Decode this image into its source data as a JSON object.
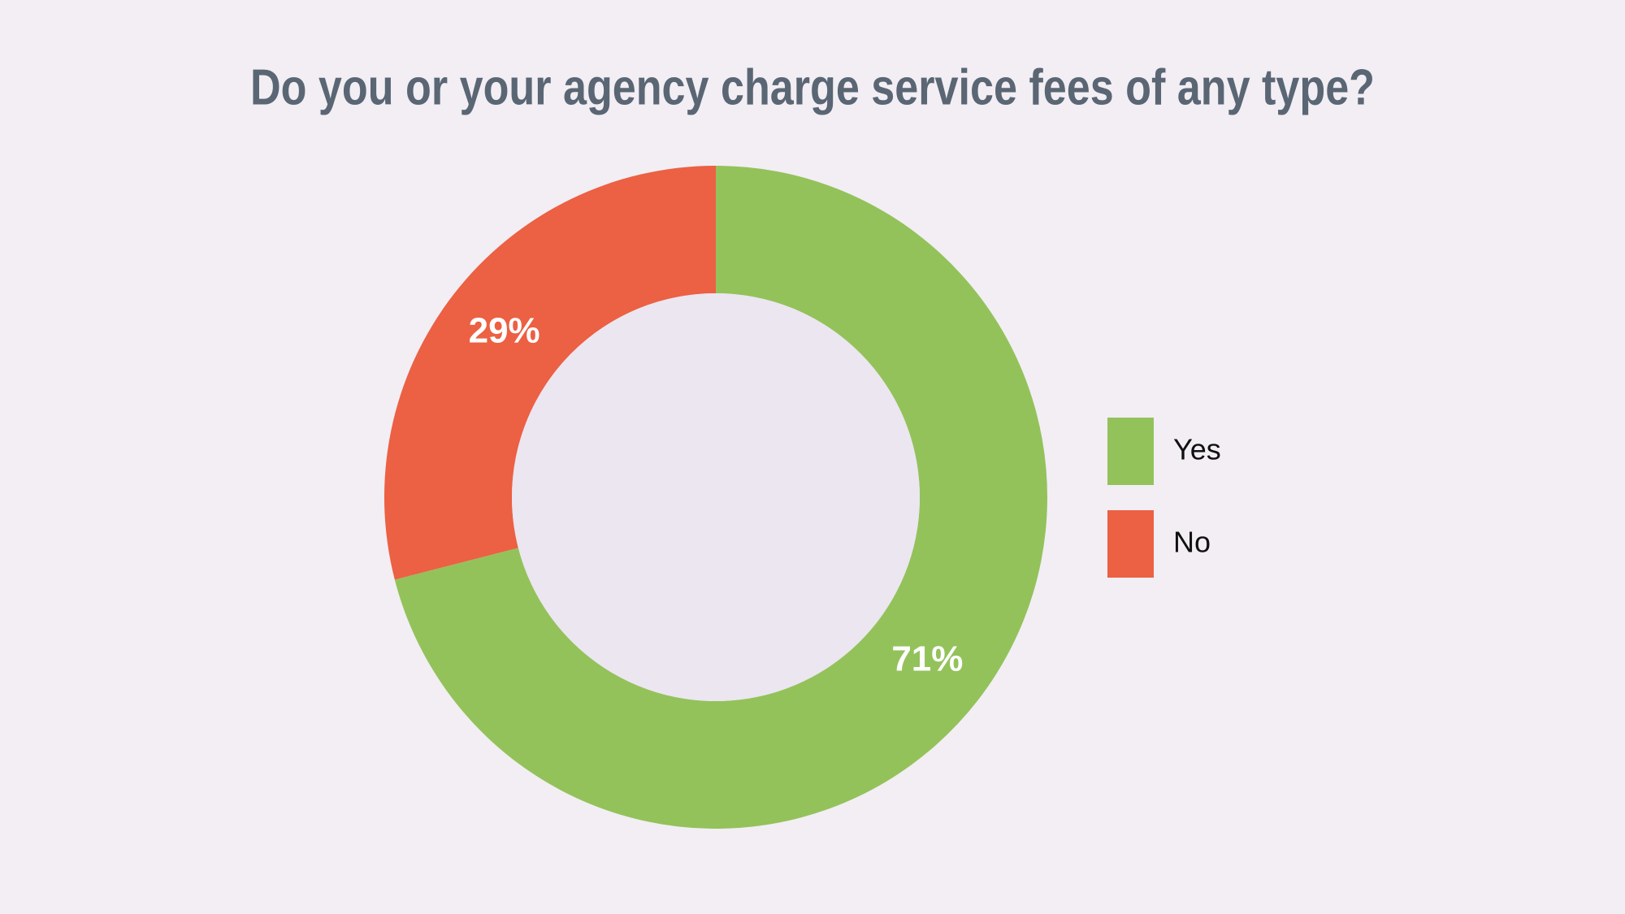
{
  "chart_data": {
    "type": "donut",
    "title": "Do you or your agency charge service fees of any type?",
    "categories": [
      "Yes",
      "No"
    ],
    "series": [
      {
        "values": [
          71,
          29
        ],
        "value_labels": [
          "71%",
          "29%"
        ],
        "colors": [
          "#93c25a",
          "#ec6043"
        ]
      }
    ],
    "legend": "right"
  }
}
